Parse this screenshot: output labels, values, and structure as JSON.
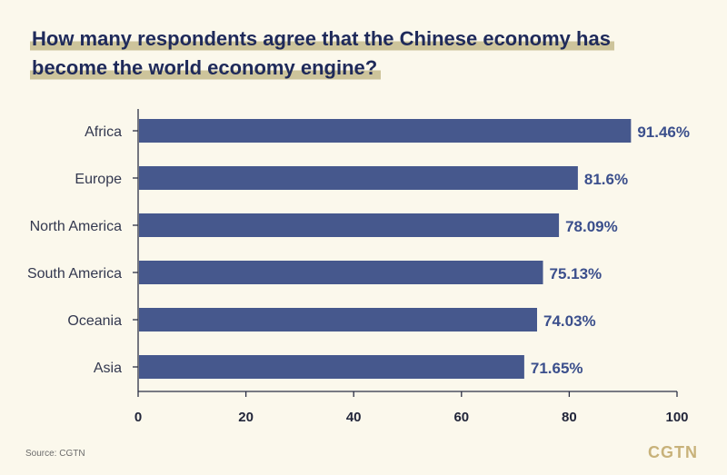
{
  "chart_data": {
    "type": "bar",
    "orientation": "horizontal",
    "title_lines": [
      "How many respondents agree that the Chinese economy has",
      "become the world economy engine?"
    ],
    "categories": [
      "Africa",
      "Europe",
      "North America",
      "South America",
      "Oceania",
      "Asia"
    ],
    "values": [
      91.46,
      81.6,
      78.09,
      75.13,
      74.03,
      71.65
    ],
    "value_labels": [
      "91.46%",
      "81.6%",
      "78.09%",
      "75.13%",
      "74.03%",
      "71.65%"
    ],
    "xlim": [
      0,
      100
    ],
    "xticks": [
      0,
      20,
      40,
      60,
      80,
      100
    ],
    "xlabel": "",
    "ylabel": "",
    "grid": false,
    "bar_color": "#46588d",
    "label_color": "#3b4f8c"
  },
  "source": "Source: CGTN",
  "logo": "CGTN"
}
